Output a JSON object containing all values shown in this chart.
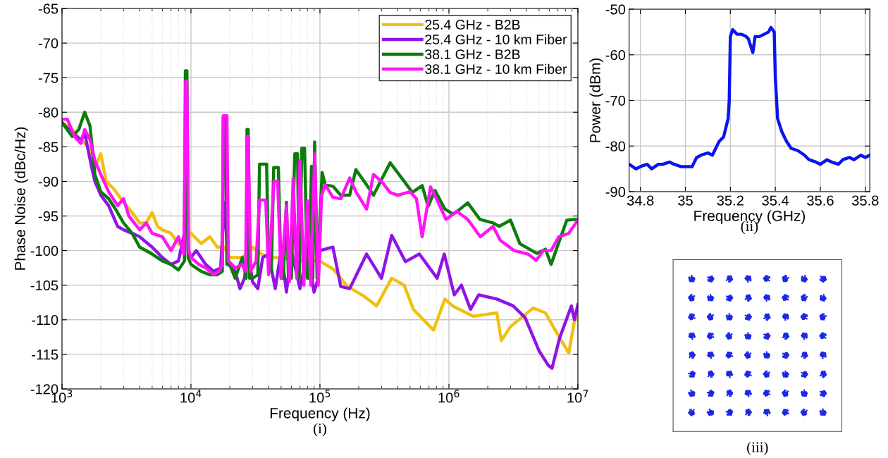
{
  "chart_data": [
    {
      "type": "line",
      "xlabel": "Frequency (Hz)",
      "ylabel": "Phase Noise (dBc/Hz)",
      "log": "x",
      "grid": true,
      "legend": "top right",
      "xlim": [
        1000,
        10000000
      ],
      "xticks": [
        {
          "value": 1000,
          "label": "10$^{3}$"
        },
        {
          "value": 10000,
          "label": "10$^{4}$"
        },
        {
          "value": 100000,
          "label": "10$^{5}$"
        },
        {
          "value": 1000000,
          "label": "10$^{6}$"
        },
        {
          "value": 10000000,
          "label": "10$^{7}$"
        }
      ],
      "ylim": [
        -120,
        -65
      ],
      "yticks": [
        -120,
        -115,
        -110,
        -105,
        -100,
        -95,
        -90,
        -85,
        -80,
        -75,
        -70,
        -65
      ],
      "annotations": [
        "(i)"
      ],
      "series": [
        {
          "name": "25.4 GHz - B2B",
          "color": "#f0c010",
          "x": [
            1000,
            1200,
            1400,
            1600,
            1800,
            2000,
            2200,
            2500,
            3000,
            3500,
            4000,
            4500,
            5000,
            5500,
            6000,
            7000,
            8000,
            9000,
            10000,
            12000,
            14000,
            16000,
            18000,
            20000,
            25000,
            30000,
            35000,
            40000,
            50000,
            70000,
            100000,
            127000,
            164000,
            220000,
            275000,
            360000,
            450000,
            530000,
            760000,
            930000,
            1070000,
            1550000,
            2350000,
            2550000,
            3000000,
            4500000,
            5600000,
            6900000,
            8500000,
            9600000,
            10000000
          ],
          "values": [
            -81.5,
            -82.5,
            -84,
            -85,
            -88,
            -86,
            -90,
            -91,
            -93,
            -94.5,
            -96,
            -96,
            -94.5,
            -96.5,
            -97,
            -97.5,
            -99,
            null,
            -97.5,
            -99,
            -98,
            -99.5,
            -99.5,
            -101,
            -101,
            -99.5,
            -100.5,
            -101,
            -101,
            -101.5,
            -101.5,
            -102.7,
            -105.2,
            -106.6,
            -108,
            -104,
            -105,
            -108.5,
            -111.5,
            -107,
            -108,
            -109.5,
            -109,
            -113,
            -111,
            -108.3,
            -109,
            -112,
            -114.8,
            -109.2,
            -110
          ]
        },
        {
          "name": "25.4 GHz - 10 km Fiber",
          "color": "#9014e6",
          "x": [
            1000,
            1200,
            1400,
            1500,
            1700,
            1800,
            2000,
            2300,
            2700,
            3000,
            3500,
            4000,
            5000,
            6000,
            7000,
            8000,
            9000,
            9200,
            9500,
            10000,
            11000,
            13000,
            15000,
            17000,
            18100,
            19500,
            22000,
            24000,
            26000,
            27600,
            30000,
            33000,
            36000,
            40000,
            45000,
            50000,
            55000,
            60000,
            70000,
            80000,
            90000,
            97000,
            100000,
            126000,
            145000,
            170000,
            230000,
            300000,
            360000,
            460000,
            590000,
            810000,
            920000,
            1100000,
            1250000,
            1470000,
            1700000,
            2350000,
            3150000,
            3900000,
            5000000,
            5900000,
            6300000,
            7200000,
            8900000,
            9400000,
            10000000
          ],
          "values": [
            -81.5,
            -83,
            -84,
            -83,
            -88,
            -90,
            -92,
            -93.5,
            -96.5,
            -97,
            -97.5,
            -98,
            -99.5,
            -101,
            -102,
            -101.5,
            -97,
            -88,
            -100,
            -101,
            -100,
            -102,
            -103,
            -102.5,
            -93,
            -102,
            -103,
            -105.5,
            -104,
            -100,
            -104.5,
            -105.5,
            -101,
            -100.5,
            -105.5,
            -100,
            -106,
            -100,
            -105.5,
            -100,
            -106,
            -104,
            -100,
            -99.5,
            -105.2,
            -105.5,
            -100.5,
            -104,
            -97.8,
            -101.6,
            -100.5,
            -104,
            -100.5,
            -106.4,
            -105,
            -108.5,
            -106.4,
            -107,
            -108,
            -109.7,
            -114.5,
            -116.6,
            -117,
            -112.7,
            -108,
            -110,
            -107.8
          ]
        },
        {
          "name": "38.1 GHz - B2B",
          "color": "#0a7d0a",
          "x": [
            1000,
            1200,
            1350,
            1500,
            1650,
            1800,
            2000,
            2300,
            2600,
            3000,
            3500,
            4000,
            5000,
            6000,
            7000,
            8000,
            8900,
            9050,
            9300,
            9500,
            10000,
            12000,
            14000,
            16000,
            17500,
            17800,
            18100,
            18500,
            19000,
            20000,
            22000,
            25000,
            26800,
            27200,
            27800,
            28500,
            30000,
            33000,
            34000,
            38600,
            40000,
            42000,
            43800,
            47600,
            50000,
            52000,
            55000,
            57000,
            60000,
            63800,
            67000,
            69000,
            72400,
            76000,
            80000,
            82000,
            86000,
            88000,
            91000,
            95000,
            104000,
            110000,
            126000,
            145000,
            170000,
            190000,
            230000,
            260000,
            350000,
            450000,
            520000,
            620000,
            690000,
            780000,
            930000,
            1070000,
            1130000,
            1400000,
            1740000,
            2200000,
            2450000,
            3000000,
            3550000,
            4800000,
            5600000,
            6200000,
            6900000,
            8200000,
            9300000,
            10000000
          ],
          "values": [
            -81.5,
            -83.5,
            -82.5,
            -80,
            -82,
            -89,
            -91.5,
            -92.5,
            -94,
            -96,
            -97.5,
            -99.5,
            -100.5,
            -101.5,
            -102,
            -102.8,
            -101.5,
            -74,
            -74,
            -101,
            -102,
            -103,
            -103.5,
            -103.5,
            -103,
            -80.7,
            -80.7,
            -80.7,
            -102,
            -102,
            -104,
            -101,
            -104,
            -82.5,
            -82.5,
            -104,
            -104,
            -103.5,
            -87.5,
            -87.5,
            -103,
            -103,
            -88,
            -88,
            -104,
            -104,
            -93,
            -104,
            -104,
            -86,
            -86,
            -104,
            -85.2,
            -85.2,
            -104,
            -104,
            -87.8,
            -104,
            -84.3,
            -104,
            -88.7,
            -90.5,
            -90.7,
            -92,
            -92,
            -88.3,
            -90.5,
            -92,
            -87.3,
            -90,
            -91.6,
            -90.6,
            -93.6,
            -91.3,
            -94,
            -94.7,
            -94.5,
            -93.1,
            -95.5,
            -96,
            -96.5,
            -95.6,
            -99,
            -100.4,
            -99.8,
            -102,
            -99.5,
            -95.6,
            -95.5,
            -95.5
          ]
        },
        {
          "name": "38.1 GHz - 10 km Fiber",
          "color": "#ff14f5",
          "x": [
            1000,
            1100,
            1250,
            1400,
            1500,
            1650,
            1800,
            2000,
            2300,
            2700,
            3000,
            3300,
            4000,
            4500,
            5000,
            6000,
            7000,
            8000,
            8800,
            9100,
            9300,
            9600,
            10000,
            11500,
            13000,
            15000,
            16500,
            17500,
            17800,
            18100,
            18500,
            19000,
            19500,
            22000,
            25000,
            26500,
            27300,
            27800,
            29000,
            32000,
            34000,
            38000,
            40000,
            44000,
            47000,
            50000,
            55000,
            58000,
            62000,
            66000,
            70000,
            75000,
            80000,
            85000,
            91000,
            97000,
            103000,
            110000,
            126000,
            145000,
            170000,
            190000,
            230000,
            260000,
            300000,
            350000,
            400000,
            500000,
            560000,
            620000,
            720000,
            800000,
            950000,
            1150000,
            1400000,
            1750000,
            2200000,
            2500000,
            3200000,
            4100000,
            4750000,
            5400000,
            6200000,
            7100000,
            8500000,
            10000000
          ],
          "values": [
            -81,
            -81,
            -83.5,
            -84.5,
            -82.5,
            -84,
            -87,
            -89,
            -91.5,
            -93.5,
            -92.5,
            -95,
            -97,
            -96,
            -97.5,
            -98,
            -100,
            -98,
            -100.5,
            -75.5,
            -75.5,
            -100,
            -101,
            -102,
            -102.5,
            -103.5,
            -103,
            -102,
            -80.5,
            -80.5,
            -80.5,
            -80.5,
            -101.5,
            -102.5,
            -102,
            -103,
            -83.5,
            -83.5,
            -103,
            -101.5,
            -92.7,
            -92.7,
            -103.5,
            -90,
            -90,
            -104,
            -93.5,
            -104.5,
            -89.6,
            -104,
            -87,
            -105,
            -92.8,
            -105,
            -86,
            -105,
            -92,
            -90.5,
            -92.3,
            -92.5,
            -89.5,
            -91.5,
            -94,
            -89,
            -90,
            -91.6,
            -92,
            -91.5,
            -92.5,
            -98,
            -90.8,
            -92.5,
            -95.5,
            -94.3,
            -95.5,
            -98,
            -96.5,
            -98.5,
            -100,
            -100.5,
            -101.4,
            -100,
            -100,
            -98,
            -97.5,
            -95.6
          ]
        }
      ]
    },
    {
      "type": "line",
      "xlabel": "Frequency (GHz)",
      "ylabel": "Power (dBm)",
      "grid": true,
      "xlim": [
        34.75,
        35.82
      ],
      "xticks": [
        34.8,
        35,
        35.2,
        35.4,
        35.6,
        35.8
      ],
      "ylim": [
        -90,
        -50
      ],
      "yticks": [
        -90,
        -80,
        -70,
        -60,
        -50
      ],
      "annotations": [
        "(ii)"
      ],
      "series": [
        {
          "color": "#0a14f0",
          "x": [
            34.75,
            34.78,
            34.8,
            34.83,
            34.85,
            34.88,
            34.9,
            34.93,
            34.95,
            34.98,
            35.0,
            35.03,
            35.05,
            35.07,
            35.1,
            35.12,
            35.13,
            35.15,
            35.17,
            35.19,
            35.195,
            35.2,
            35.21,
            35.23,
            35.25,
            35.27,
            35.28,
            35.3,
            35.31,
            35.33,
            35.35,
            35.37,
            35.38,
            35.395,
            35.4,
            35.41,
            35.43,
            35.45,
            35.47,
            35.5,
            35.53,
            35.55,
            35.58,
            35.6,
            35.63,
            35.65,
            35.68,
            35.7,
            35.73,
            35.75,
            35.78,
            35.8,
            35.82
          ],
          "values": [
            -84,
            -85,
            -84.5,
            -84,
            -85,
            -84,
            -84,
            -83.5,
            -84,
            -84.5,
            -84.5,
            -84.5,
            -82.5,
            -82,
            -81.5,
            -82,
            -81,
            -79,
            -78,
            -74,
            -70,
            -56,
            -54.5,
            -55.5,
            -55.5,
            -56,
            -56.5,
            -59.5,
            -56,
            -56,
            -55.5,
            -55,
            -54,
            -55,
            -65,
            -74,
            -77,
            -79,
            -80.5,
            -81,
            -82,
            -83,
            -83.5,
            -84,
            -83,
            -83.5,
            -84,
            -83,
            -82.5,
            -83,
            -82,
            -82.5,
            -82
          ]
        }
      ]
    },
    {
      "type": "other",
      "annotations": [
        "(iii)"
      ]
    }
  ]
}
